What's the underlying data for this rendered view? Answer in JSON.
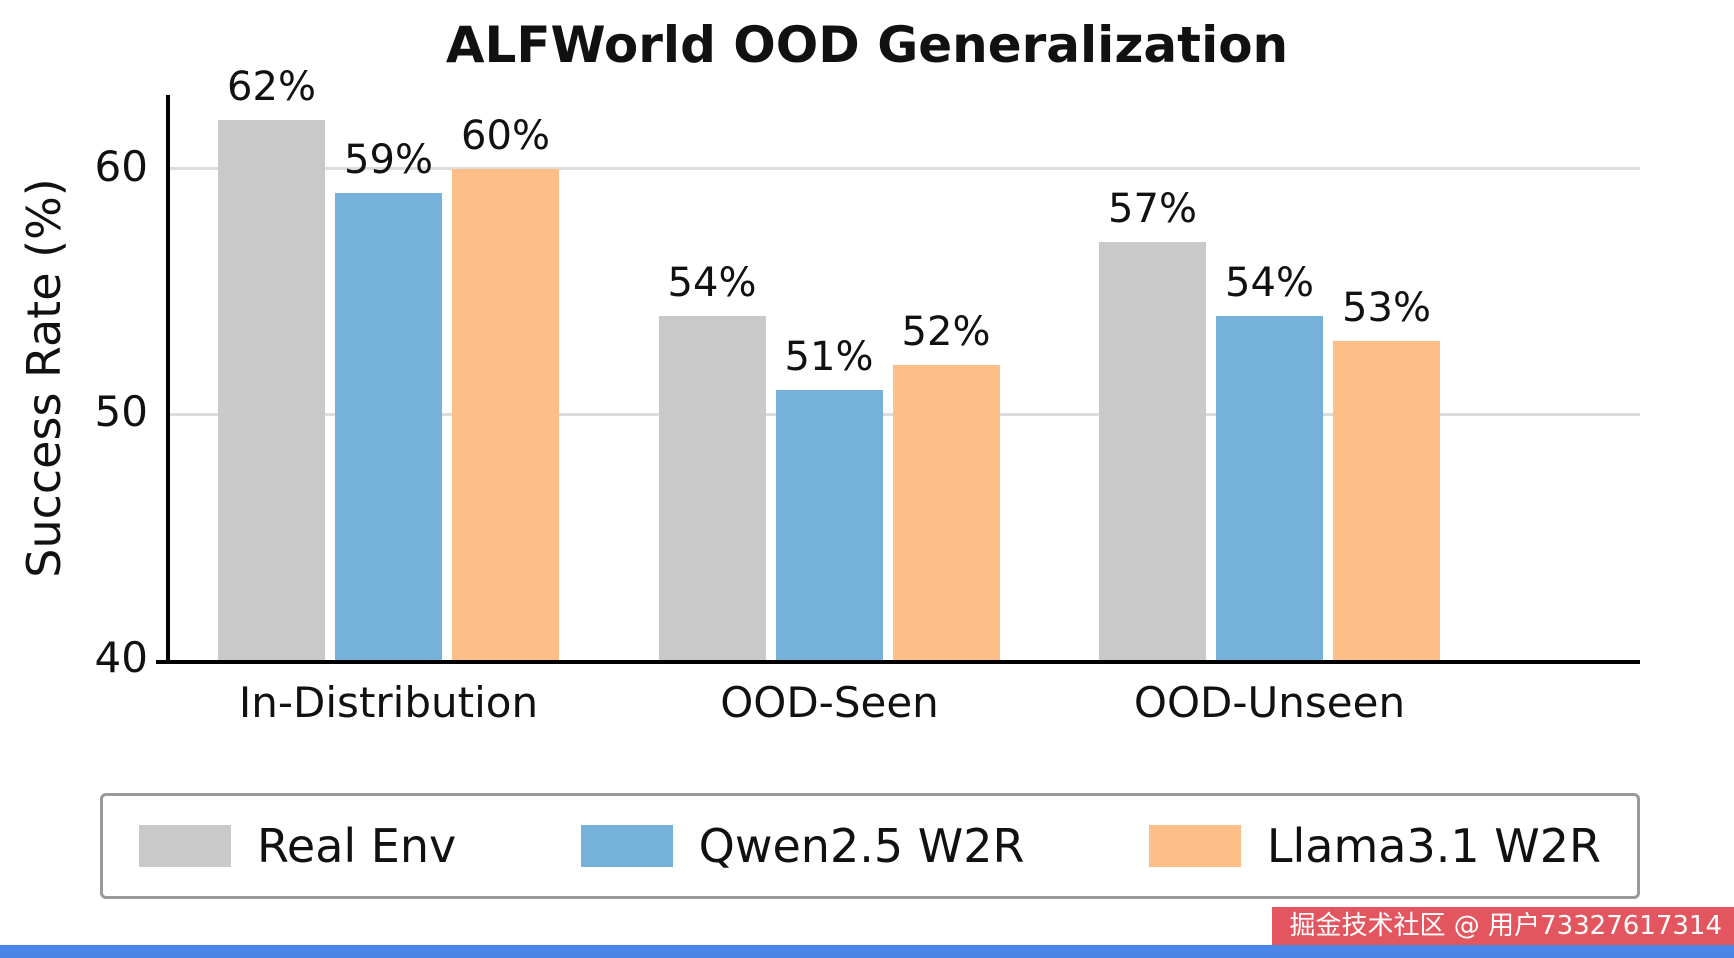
{
  "chart_data": {
    "type": "bar",
    "title": "ALFWorld OOD Generalization",
    "xlabel": "",
    "ylabel": "Success Rate (%)",
    "ylim": [
      40,
      63
    ],
    "yticks": [
      40,
      50,
      60
    ],
    "grid": true,
    "legend_position": "bottom",
    "categories": [
      "In-Distribution",
      "OOD-Seen",
      "OOD-Unseen"
    ],
    "series": [
      {
        "name": "Real Env",
        "color": "#c9c9c9",
        "values": [
          62,
          54,
          57
        ],
        "labels": [
          "62%",
          "54%",
          "57%"
        ]
      },
      {
        "name": "Qwen2.5 W2R",
        "color": "#75b1d9",
        "values": [
          59,
          51,
          54
        ],
        "labels": [
          "59%",
          "51%",
          "54%"
        ]
      },
      {
        "name": "Llama3.1 W2R",
        "color": "#fdbf87",
        "values": [
          60,
          52,
          53
        ],
        "labels": [
          "60%",
          "52%",
          "53%"
        ]
      }
    ]
  },
  "colors": {
    "grid": "#dcdcdc",
    "axis": "#000000",
    "watermark_bg": "#e4565f",
    "bottom_strip": "#4a86e8"
  },
  "watermark": {
    "text": "掘金技术社区 @ 用户73327617314"
  }
}
